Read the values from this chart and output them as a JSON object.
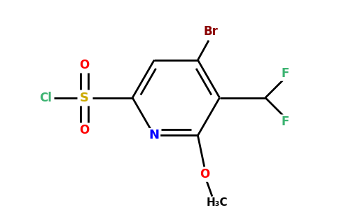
{
  "bg_color": "#ffffff",
  "bond_color": "#000000",
  "atom_colors": {
    "Br": "#8b0000",
    "F": "#3cb371",
    "Cl": "#3cb371",
    "S": "#ccaa00",
    "N": "#0000ff",
    "O": "#ff0000",
    "C": "#000000"
  },
  "figsize": [
    4.84,
    3.0
  ],
  "dpi": 100
}
